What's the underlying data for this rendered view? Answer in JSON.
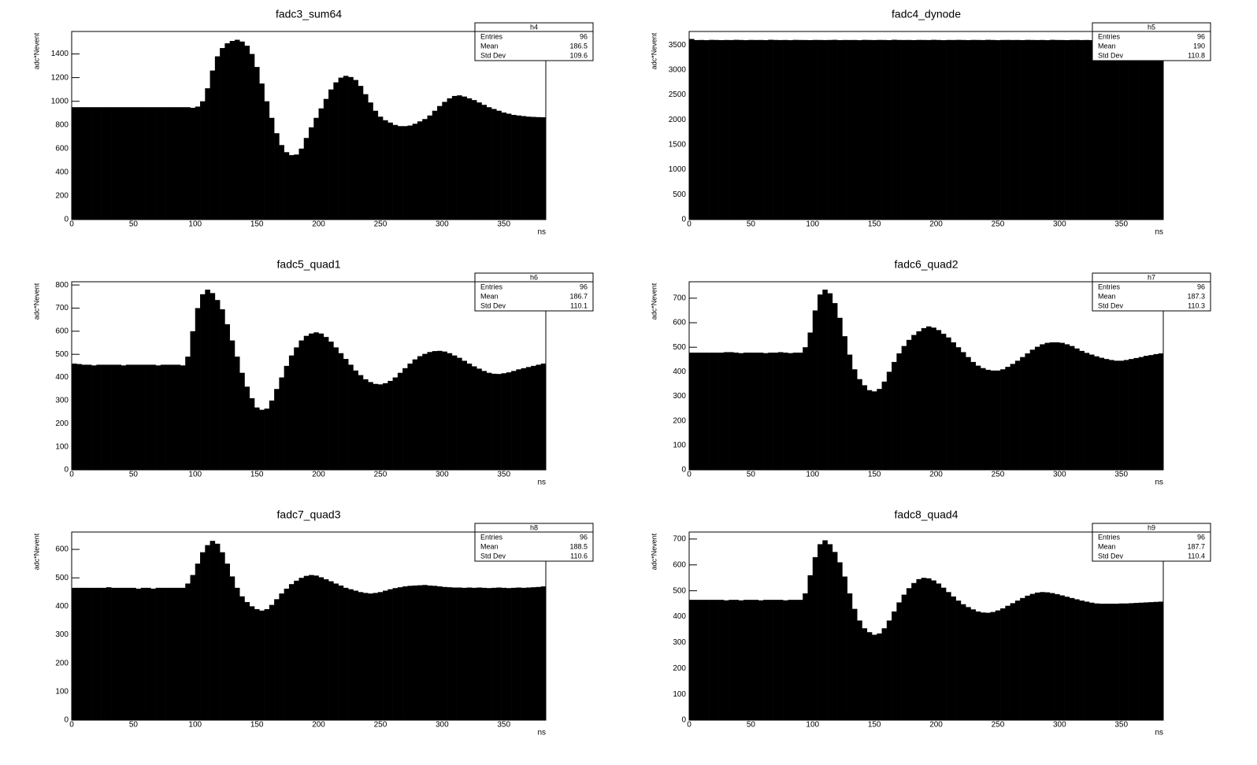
{
  "chart_data": [
    {
      "type": "histogram",
      "title": "fadc3_sum64",
      "xlabel": "ns",
      "ylabel": "adc*Nevent",
      "color": "#000000",
      "bins": [
        0,
        4,
        8,
        12,
        16,
        20,
        24,
        28,
        32,
        36,
        40,
        44,
        48,
        52,
        56,
        60,
        64,
        68,
        72,
        76,
        80,
        84,
        88,
        92,
        96,
        100,
        104,
        108,
        112,
        116,
        120,
        124,
        128,
        132,
        136,
        140,
        144,
        148,
        152,
        156,
        160,
        164,
        168,
        172,
        176,
        180,
        184,
        188,
        192,
        196,
        200,
        204,
        208,
        212,
        216,
        220,
        224,
        228,
        232,
        236,
        240,
        244,
        248,
        252,
        256,
        260,
        264,
        268,
        272,
        276,
        280,
        284,
        288,
        292,
        296,
        300,
        304,
        308,
        312,
        316,
        320,
        324,
        328,
        332,
        336,
        340,
        344,
        348,
        352,
        356,
        360,
        364,
        368,
        372,
        376,
        380,
        384
      ],
      "values": [
        950,
        950,
        950,
        950,
        950,
        950,
        950,
        950,
        950,
        950,
        950,
        950,
        950,
        950,
        950,
        950,
        950,
        950,
        950,
        950,
        950,
        950,
        950,
        950,
        945,
        955,
        1000,
        1110,
        1260,
        1380,
        1450,
        1490,
        1510,
        1520,
        1505,
        1470,
        1400,
        1290,
        1150,
        1000,
        860,
        730,
        630,
        570,
        545,
        550,
        600,
        690,
        780,
        860,
        940,
        1020,
        1100,
        1160,
        1200,
        1215,
        1205,
        1180,
        1130,
        1060,
        990,
        920,
        870,
        840,
        820,
        800,
        790,
        790,
        795,
        810,
        830,
        850,
        880,
        920,
        960,
        995,
        1025,
        1045,
        1050,
        1040,
        1025,
        1010,
        990,
        970,
        950,
        935,
        920,
        905,
        895,
        885,
        880,
        875,
        870,
        868,
        866,
        865
      ],
      "xlim": [
        0,
        384
      ],
      "xticks": [
        0,
        50,
        100,
        150,
        200,
        250,
        300,
        350
      ],
      "ylim": [
        0,
        1590
      ],
      "yticks": [
        0,
        200,
        400,
        600,
        800,
        1000,
        1200,
        1400
      ],
      "stats": {
        "name": "h4",
        "rows": [
          [
            "Entries",
            96
          ],
          [
            "Mean",
            186.5
          ],
          [
            "Std Dev",
            109.6
          ]
        ]
      }
    },
    {
      "type": "histogram",
      "title": "fadc4_dynode",
      "xlabel": "ns",
      "ylabel": "adc*Nevent",
      "color": "#000000",
      "bins": [
        0,
        4,
        8,
        12,
        16,
        20,
        24,
        28,
        32,
        36,
        40,
        44,
        48,
        52,
        56,
        60,
        64,
        68,
        72,
        76,
        80,
        84,
        88,
        92,
        96,
        100,
        104,
        108,
        112,
        116,
        120,
        124,
        128,
        132,
        136,
        140,
        144,
        148,
        152,
        156,
        160,
        164,
        168,
        172,
        176,
        180,
        184,
        188,
        192,
        196,
        200,
        204,
        208,
        212,
        216,
        220,
        224,
        228,
        232,
        236,
        240,
        244,
        248,
        252,
        256,
        260,
        264,
        268,
        272,
        276,
        280,
        284,
        288,
        292,
        296,
        300,
        304,
        308,
        312,
        316,
        320,
        324,
        328,
        332,
        336,
        340,
        344,
        348,
        352,
        356,
        360,
        364,
        368,
        372,
        376,
        380,
        384
      ],
      "values": [
        3620,
        3598,
        3600,
        3596,
        3602,
        3600,
        3597,
        3600,
        3598,
        3603,
        3600,
        3596,
        3601,
        3599,
        3600,
        3597,
        3604,
        3600,
        3598,
        3600,
        3596,
        3602,
        3600,
        3599,
        3597,
        3601,
        3600,
        3598,
        3600,
        3603,
        3597,
        3600,
        3599,
        3600,
        3596,
        3602,
        3600,
        3598,
        3601,
        3600,
        3597,
        3604,
        3600,
        3599,
        3600,
        3597,
        3601,
        3600,
        3598,
        3603,
        3600,
        3596,
        3600,
        3599,
        3602,
        3600,
        3597,
        3601,
        3600,
        3598,
        3603,
        3600,
        3596,
        3600,
        3601,
        3599,
        3600,
        3597,
        3602,
        3600,
        3598,
        3600,
        3596,
        3603,
        3600,
        3599,
        3597,
        3600,
        3601,
        3598,
        3600,
        3596,
        3602,
        3600,
        3599,
        3600,
        3597,
        3604,
        3600,
        3598,
        3600,
        3596,
        3601,
        3600,
        3599,
        3600
      ],
      "xlim": [
        0,
        384
      ],
      "xticks": [
        0,
        50,
        100,
        150,
        200,
        250,
        300,
        350
      ],
      "ylim": [
        0,
        3770
      ],
      "yticks": [
        0,
        500,
        1000,
        1500,
        2000,
        2500,
        3000,
        3500
      ],
      "stats": {
        "name": "h5",
        "rows": [
          [
            "Entries",
            96
          ],
          [
            "Mean",
            190
          ],
          [
            "Std Dev",
            110.8
          ]
        ]
      }
    },
    {
      "type": "histogram",
      "title": "fadc5_quad1",
      "xlabel": "ns",
      "ylabel": "adc*Nevent",
      "color": "#000000",
      "bins": [
        0,
        4,
        8,
        12,
        16,
        20,
        24,
        28,
        32,
        36,
        40,
        44,
        48,
        52,
        56,
        60,
        64,
        68,
        72,
        76,
        80,
        84,
        88,
        92,
        96,
        100,
        104,
        108,
        112,
        116,
        120,
        124,
        128,
        132,
        136,
        140,
        144,
        148,
        152,
        156,
        160,
        164,
        168,
        172,
        176,
        180,
        184,
        188,
        192,
        196,
        200,
        204,
        208,
        212,
        216,
        220,
        224,
        228,
        232,
        236,
        240,
        244,
        248,
        252,
        256,
        260,
        264,
        268,
        272,
        276,
        280,
        284,
        288,
        292,
        296,
        300,
        304,
        308,
        312,
        316,
        320,
        324,
        328,
        332,
        336,
        340,
        344,
        348,
        352,
        356,
        360,
        364,
        368,
        372,
        376,
        380,
        384
      ],
      "values": [
        460,
        458,
        455,
        455,
        452,
        455,
        455,
        455,
        455,
        455,
        452,
        455,
        455,
        455,
        455,
        455,
        455,
        452,
        455,
        455,
        455,
        455,
        452,
        490,
        600,
        700,
        760,
        780,
        765,
        735,
        695,
        630,
        560,
        490,
        420,
        360,
        310,
        270,
        260,
        265,
        300,
        350,
        400,
        450,
        495,
        530,
        560,
        580,
        590,
        595,
        590,
        575,
        555,
        530,
        505,
        480,
        455,
        430,
        410,
        392,
        380,
        372,
        370,
        375,
        385,
        400,
        420,
        440,
        460,
        478,
        492,
        502,
        510,
        514,
        515,
        512,
        505,
        495,
        485,
        472,
        460,
        448,
        438,
        428,
        420,
        416,
        415,
        418,
        422,
        428,
        435,
        440,
        445,
        450,
        455,
        460
      ],
      "xlim": [
        0,
        384
      ],
      "xticks": [
        0,
        50,
        100,
        150,
        200,
        250,
        300,
        350
      ],
      "ylim": [
        0,
        814
      ],
      "yticks": [
        0,
        100,
        200,
        300,
        400,
        500,
        600,
        700,
        800
      ],
      "stats": {
        "name": "h6",
        "rows": [
          [
            "Entries",
            96
          ],
          [
            "Mean",
            186.7
          ],
          [
            "Std Dev",
            110.1
          ]
        ]
      }
    },
    {
      "type": "histogram",
      "title": "fadc6_quad2",
      "xlabel": "ns",
      "ylabel": "adc*Nevent",
      "color": "#000000",
      "bins": [
        0,
        4,
        8,
        12,
        16,
        20,
        24,
        28,
        32,
        36,
        40,
        44,
        48,
        52,
        56,
        60,
        64,
        68,
        72,
        76,
        80,
        84,
        88,
        92,
        96,
        100,
        104,
        108,
        112,
        116,
        120,
        124,
        128,
        132,
        136,
        140,
        144,
        148,
        152,
        156,
        160,
        164,
        168,
        172,
        176,
        180,
        184,
        188,
        192,
        196,
        200,
        204,
        208,
        212,
        216,
        220,
        224,
        228,
        232,
        236,
        240,
        244,
        248,
        252,
        256,
        260,
        264,
        268,
        272,
        276,
        280,
        284,
        288,
        292,
        296,
        300,
        304,
        308,
        312,
        316,
        320,
        324,
        328,
        332,
        336,
        340,
        344,
        348,
        352,
        356,
        360,
        364,
        368,
        372,
        376,
        380,
        384
      ],
      "values": [
        478,
        478,
        478,
        478,
        478,
        478,
        478,
        480,
        480,
        478,
        476,
        478,
        478,
        478,
        478,
        476,
        478,
        478,
        480,
        478,
        476,
        478,
        478,
        500,
        560,
        650,
        715,
        735,
        720,
        680,
        620,
        545,
        470,
        410,
        370,
        345,
        325,
        320,
        330,
        360,
        400,
        440,
        475,
        505,
        530,
        550,
        565,
        578,
        585,
        580,
        570,
        555,
        540,
        520,
        500,
        480,
        460,
        440,
        425,
        415,
        408,
        405,
        405,
        410,
        420,
        432,
        445,
        460,
        475,
        490,
        502,
        512,
        518,
        520,
        520,
        518,
        512,
        505,
        495,
        485,
        477,
        470,
        463,
        457,
        452,
        448,
        445,
        445,
        448,
        452,
        456,
        460,
        465,
        468,
        472,
        475
      ],
      "xlim": [
        0,
        384
      ],
      "xticks": [
        0,
        50,
        100,
        150,
        200,
        250,
        300,
        350
      ],
      "ylim": [
        0,
        767
      ],
      "yticks": [
        0,
        100,
        200,
        300,
        400,
        500,
        600,
        700
      ],
      "stats": {
        "name": "h7",
        "rows": [
          [
            "Entries",
            96
          ],
          [
            "Mean",
            187.3
          ],
          [
            "Std Dev",
            110.3
          ]
        ]
      }
    },
    {
      "type": "histogram",
      "title": "fadc7_quad3",
      "xlabel": "ns",
      "ylabel": "adc*Nevent",
      "color": "#000000",
      "bins": [
        0,
        4,
        8,
        12,
        16,
        20,
        24,
        28,
        32,
        36,
        40,
        44,
        48,
        52,
        56,
        60,
        64,
        68,
        72,
        76,
        80,
        84,
        88,
        92,
        96,
        100,
        104,
        108,
        112,
        116,
        120,
        124,
        128,
        132,
        136,
        140,
        144,
        148,
        152,
        156,
        160,
        164,
        168,
        172,
        176,
        180,
        184,
        188,
        192,
        196,
        200,
        204,
        208,
        212,
        216,
        220,
        224,
        228,
        232,
        236,
        240,
        244,
        248,
        252,
        256,
        260,
        264,
        268,
        272,
        276,
        280,
        284,
        288,
        292,
        296,
        300,
        304,
        308,
        312,
        316,
        320,
        324,
        328,
        332,
        336,
        340,
        344,
        348,
        352,
        356,
        360,
        364,
        368,
        372,
        376,
        380,
        384
      ],
      "values": [
        465,
        465,
        465,
        465,
        465,
        465,
        465,
        467,
        465,
        465,
        465,
        465,
        465,
        462,
        465,
        465,
        462,
        465,
        465,
        465,
        465,
        465,
        465,
        480,
        510,
        550,
        590,
        615,
        630,
        620,
        590,
        550,
        505,
        465,
        435,
        415,
        400,
        390,
        385,
        390,
        405,
        425,
        445,
        462,
        478,
        490,
        500,
        507,
        510,
        508,
        502,
        495,
        488,
        480,
        473,
        465,
        460,
        455,
        450,
        447,
        445,
        447,
        450,
        455,
        460,
        464,
        467,
        470,
        472,
        473,
        474,
        475,
        473,
        472,
        470,
        468,
        467,
        466,
        466,
        465,
        466,
        465,
        466,
        465,
        464,
        465,
        466,
        465,
        464,
        465,
        466,
        465,
        466,
        467,
        468,
        470
      ],
      "xlim": [
        0,
        384
      ],
      "xticks": [
        0,
        50,
        100,
        150,
        200,
        250,
        300,
        350
      ],
      "ylim": [
        0,
        661
      ],
      "yticks": [
        0,
        100,
        200,
        300,
        400,
        500,
        600
      ],
      "stats": {
        "name": "h8",
        "rows": [
          [
            "Entries",
            96
          ],
          [
            "Mean",
            188.5
          ],
          [
            "Std Dev",
            110.6
          ]
        ]
      }
    },
    {
      "type": "histogram",
      "title": "fadc8_quad4",
      "xlabel": "ns",
      "ylabel": "adc*Nevent",
      "color": "#000000",
      "bins": [
        0,
        4,
        8,
        12,
        16,
        20,
        24,
        28,
        32,
        36,
        40,
        44,
        48,
        52,
        56,
        60,
        64,
        68,
        72,
        76,
        80,
        84,
        88,
        92,
        96,
        100,
        104,
        108,
        112,
        116,
        120,
        124,
        128,
        132,
        136,
        140,
        144,
        148,
        152,
        156,
        160,
        164,
        168,
        172,
        176,
        180,
        184,
        188,
        192,
        196,
        200,
        204,
        208,
        212,
        216,
        220,
        224,
        228,
        232,
        236,
        240,
        244,
        248,
        252,
        256,
        260,
        264,
        268,
        272,
        276,
        280,
        284,
        288,
        292,
        296,
        300,
        304,
        308,
        312,
        316,
        320,
        324,
        328,
        332,
        336,
        340,
        344,
        348,
        352,
        356,
        360,
        364,
        368,
        372,
        376,
        380,
        384
      ],
      "values": [
        465,
        465,
        465,
        465,
        465,
        465,
        465,
        463,
        465,
        465,
        463,
        465,
        465,
        465,
        463,
        465,
        465,
        465,
        465,
        463,
        465,
        465,
        465,
        490,
        560,
        630,
        680,
        695,
        680,
        650,
        610,
        555,
        490,
        430,
        385,
        355,
        340,
        330,
        335,
        355,
        385,
        420,
        455,
        485,
        510,
        530,
        545,
        550,
        548,
        540,
        528,
        512,
        495,
        478,
        462,
        448,
        437,
        428,
        420,
        416,
        415,
        418,
        424,
        432,
        442,
        452,
        462,
        472,
        481,
        488,
        493,
        495,
        494,
        491,
        487,
        482,
        477,
        472,
        467,
        462,
        458,
        454,
        451,
        450,
        450,
        450,
        450,
        451,
        451,
        452,
        453,
        454,
        455,
        456,
        457,
        458
      ],
      "xlim": [
        0,
        384
      ],
      "xticks": [
        0,
        50,
        100,
        150,
        200,
        250,
        300,
        350
      ],
      "ylim": [
        0,
        727
      ],
      "yticks": [
        0,
        100,
        200,
        300,
        400,
        500,
        600,
        700
      ],
      "stats": {
        "name": "h9",
        "rows": [
          [
            "Entries",
            96
          ],
          [
            "Mean",
            187.7
          ],
          [
            "Std Dev",
            110.4
          ]
        ]
      }
    }
  ]
}
